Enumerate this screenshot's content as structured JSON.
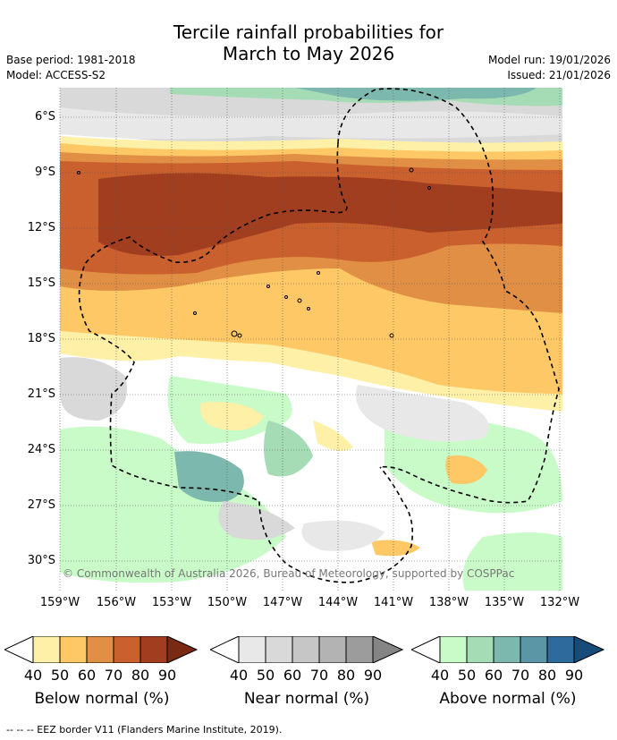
{
  "title_line1": "Tercile rainfall probabilities for",
  "title_line2": "March to May 2026",
  "base_period": "Base period: 1981-2018",
  "model": "Model: ACCESS-S2",
  "model_run": "Model run: 19/01/2026",
  "issued": "Issued: 21/01/2026",
  "copyright": "© Commonwealth of Australia 2026, Bureau of Meteorology, supported by COSPPac",
  "lat_labels": [
    "6°S",
    "9°S",
    "12°S",
    "15°S",
    "18°S",
    "21°S",
    "24°S",
    "27°S",
    "30°S"
  ],
  "lon_labels": [
    "159°W",
    "156°W",
    "153°W",
    "150°W",
    "147°W",
    "144°W",
    "141°W",
    "138°W",
    "135°W",
    "132°W"
  ],
  "legend": {
    "ticks": [
      "40",
      "50",
      "60",
      "70",
      "80",
      "90"
    ],
    "below": {
      "title": "Below normal (%)",
      "colors": [
        "#fef0a7",
        "#fdc865",
        "#e28f46",
        "#c9602d",
        "#a13e1f",
        "#7a2a12"
      ]
    },
    "near": {
      "title": "Near normal (%)",
      "colors": [
        "#e8e8e8",
        "#d9d9d9",
        "#c6c6c6",
        "#b3b3b3",
        "#9c9c9c",
        "#858585"
      ]
    },
    "above": {
      "title": "Above normal (%)",
      "colors": [
        "#c8fbc8",
        "#a5dcb6",
        "#7cb8ad",
        "#5a96a6",
        "#2f6a9d",
        "#164b7a"
      ]
    }
  },
  "footnote": "--  --  -- EEZ border V11 (Flanders Marine Institute, 2019)."
}
